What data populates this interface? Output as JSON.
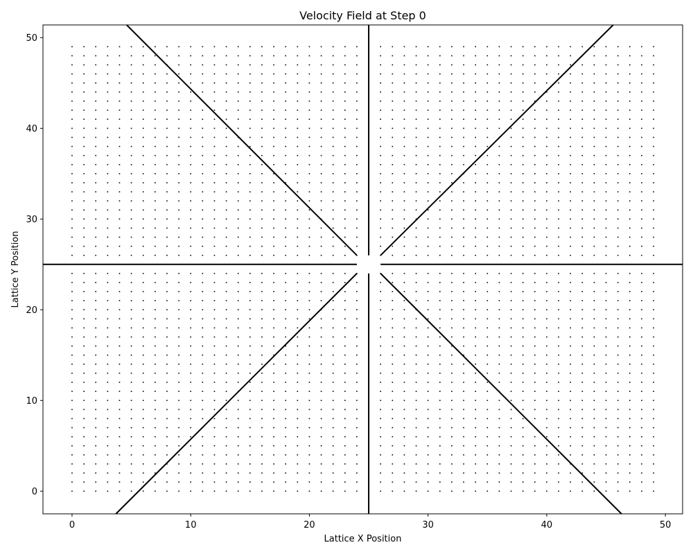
{
  "chart_data": {
    "type": "scatter",
    "title": "Velocity Field at Step 0",
    "xlabel": "Lattice X Position",
    "ylabel": "Lattice Y Position",
    "xlim": [
      -2.45,
      51.45
    ],
    "ylim": [
      -2.5,
      51.4
    ],
    "xticks": [
      0,
      10,
      20,
      30,
      40,
      50
    ],
    "yticks": [
      0,
      10,
      20,
      30,
      40,
      50
    ],
    "grid": false,
    "lattice": {
      "x_start": 0,
      "x_end": 49,
      "y_start": 0,
      "y_end": 49,
      "step": 1
    },
    "center": [
      25,
      25
    ],
    "source_point": [
      25,
      25
    ],
    "field_lines": [
      {
        "name": "",
        "x": [
          25,
          25
        ],
        "y": [
          26,
          51.4
        ]
      },
      {
        "name": "",
        "x": [
          25,
          25
        ],
        "y": [
          24,
          -2.5
        ]
      },
      {
        "name": "",
        "x": [
          26,
          51.45
        ],
        "y": [
          25,
          25
        ]
      },
      {
        "name": "",
        "x": [
          24,
          -2.45
        ],
        "y": [
          25,
          25
        ]
      },
      {
        "name": "",
        "x": [
          26,
          45.6
        ],
        "y": [
          26,
          51.4
        ]
      },
      {
        "name": "",
        "x": [
          24,
          4.6
        ],
        "y": [
          26,
          51.4
        ]
      },
      {
        "name": "",
        "x": [
          26,
          46.3
        ],
        "y": [
          24,
          -2.5
        ]
      },
      {
        "name": "",
        "x": [
          24,
          3.7
        ],
        "y": [
          24,
          -2.5
        ]
      }
    ],
    "colors": {
      "points": "#000000",
      "lines": "#000000",
      "background": "#ffffff"
    }
  }
}
